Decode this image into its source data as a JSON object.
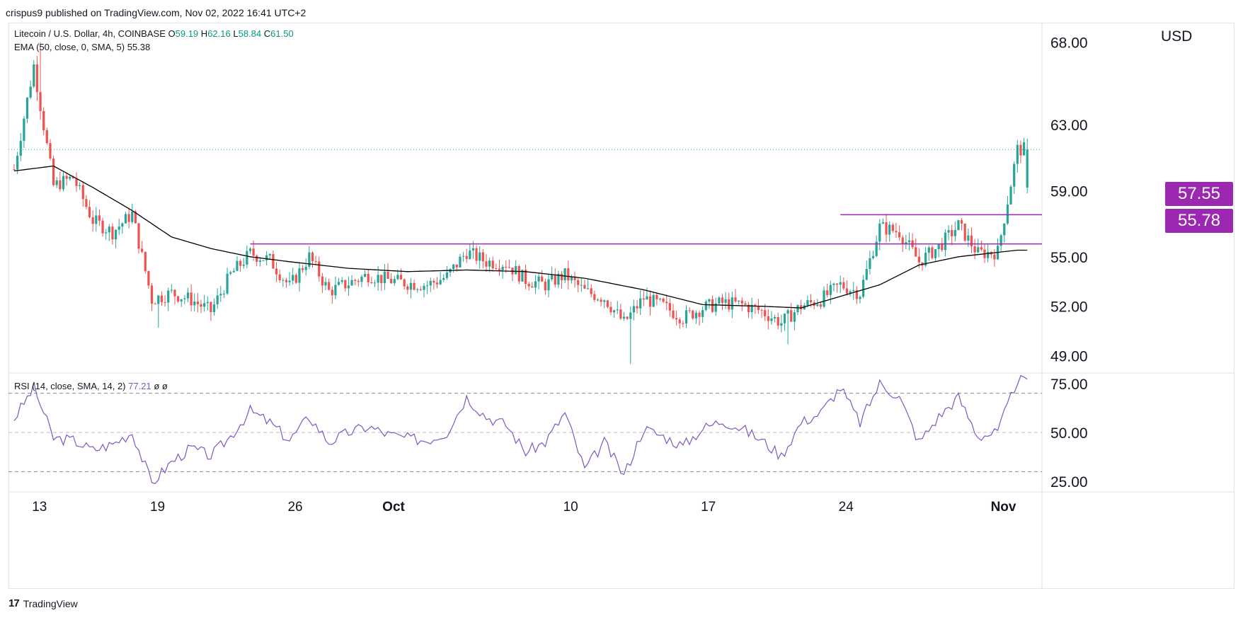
{
  "header": {
    "publish_line": "crispus9 published on TradingView.com, Nov 02, 2022 16:41 UTC+2"
  },
  "legend": {
    "symbol": "Litecoin / U.S. Dollar, 4h, COINBASE",
    "o_label": "O",
    "o_value": "59.19",
    "h_label": "H",
    "h_value": "62.16",
    "l_label": "L",
    "l_value": "58.84",
    "c_label": "C",
    "c_value": "61.50",
    "ema_label": "EMA (50, close, 0, SMA, 5)",
    "ema_value": "55.38"
  },
  "rsi_legend": {
    "label": "RSI (14, close, SMA, 14, 2)",
    "value": "77.21",
    "extra": "ø ø"
  },
  "currency": "USD",
  "footer": {
    "brand": "TradingView",
    "logo_glyph": "17"
  },
  "colors": {
    "up": "#26a69a",
    "down": "#ef5350",
    "ema": "#000000",
    "level": "#9c27b0",
    "rsi": "#7e57c2",
    "last_price": "#26a69a"
  },
  "chart_data": [
    {
      "type": "candlestick",
      "title": "Litecoin / U.S. Dollar, 4h, COINBASE",
      "ylabel": "USD",
      "ylim": [
        48.0,
        68.5
      ],
      "y_ticks": [
        "49.00",
        "52.00",
        "55.00",
        "59.00",
        "63.00",
        "68.00"
      ],
      "x_tick_labels": [
        "13",
        "19",
        "26",
        "Oct",
        "10",
        "17",
        "24",
        "Nov"
      ],
      "x_range_dates": [
        "2022-09-12",
        "2022-11-02"
      ],
      "last_price": 61.5,
      "price_labels": [
        "57.55",
        "55.78"
      ],
      "horizontal_levels": [
        {
          "price": 57.55,
          "from_date": "2022-10-24",
          "to_date": "2022-11-02"
        },
        {
          "price": 55.78,
          "from_date": "2022-09-24",
          "to_date": "2022-11-02"
        }
      ],
      "close_anchors": [
        [
          "2022-09-12",
          60.3
        ],
        [
          "2022-09-13",
          66.6
        ],
        [
          "2022-09-14",
          59.3
        ],
        [
          "2022-09-15",
          59.8
        ],
        [
          "2022-09-16",
          57.2
        ],
        [
          "2022-09-17",
          56.5
        ],
        [
          "2022-09-18",
          57.6
        ],
        [
          "2022-09-19",
          52.4
        ],
        [
          "2022-09-20",
          52.8
        ],
        [
          "2022-09-21",
          52.4
        ],
        [
          "2022-09-22",
          51.7
        ],
        [
          "2022-09-23",
          53.9
        ],
        [
          "2022-09-24",
          55.2
        ],
        [
          "2022-09-25",
          54.8
        ],
        [
          "2022-09-26",
          53.2
        ],
        [
          "2022-09-27",
          55.0
        ],
        [
          "2022-09-28",
          52.9
        ],
        [
          "2022-09-29",
          53.4
        ],
        [
          "2022-09-30",
          53.9
        ],
        [
          "2022-10-01",
          53.6
        ],
        [
          "2022-10-02",
          53.4
        ],
        [
          "2022-10-03",
          53.3
        ],
        [
          "2022-10-04",
          53.8
        ],
        [
          "2022-10-05",
          55.3
        ],
        [
          "2022-10-06",
          54.7
        ],
        [
          "2022-10-07",
          54.6
        ],
        [
          "2022-10-08",
          53.6
        ],
        [
          "2022-10-09",
          53.3
        ],
        [
          "2022-10-10",
          53.9
        ],
        [
          "2022-10-11",
          52.9
        ],
        [
          "2022-10-12",
          52.5
        ],
        [
          "2022-10-13",
          51.0
        ],
        [
          "2022-10-14",
          52.5
        ],
        [
          "2022-10-15",
          52.0
        ],
        [
          "2022-10-16",
          51.3
        ],
        [
          "2022-10-17",
          51.9
        ],
        [
          "2022-10-18",
          52.2
        ],
        [
          "2022-10-19",
          52.1
        ],
        [
          "2022-10-20",
          51.7
        ],
        [
          "2022-10-21",
          51.0
        ],
        [
          "2022-10-22",
          52.0
        ],
        [
          "2022-10-23",
          52.4
        ],
        [
          "2022-10-24",
          53.3
        ],
        [
          "2022-10-25",
          52.8
        ],
        [
          "2022-10-26",
          56.8
        ],
        [
          "2022-10-27",
          56.5
        ],
        [
          "2022-10-28",
          54.7
        ],
        [
          "2022-10-29",
          55.6
        ],
        [
          "2022-10-30",
          56.9
        ],
        [
          "2022-10-31",
          55.2
        ],
        [
          "2022-11-01",
          55.3
        ],
        [
          "2022-11-02",
          61.5
        ]
      ],
      "ema_anchors": [
        [
          "2022-09-12",
          60.2
        ],
        [
          "2022-09-14",
          60.5
        ],
        [
          "2022-09-16",
          59.2
        ],
        [
          "2022-09-18",
          57.8
        ],
        [
          "2022-09-20",
          56.2
        ],
        [
          "2022-09-22",
          55.5
        ],
        [
          "2022-09-24",
          55.0
        ],
        [
          "2022-09-26",
          54.7
        ],
        [
          "2022-09-29",
          54.3
        ],
        [
          "2022-10-02",
          54.1
        ],
        [
          "2022-10-05",
          54.2
        ],
        [
          "2022-10-08",
          54.1
        ],
        [
          "2022-10-11",
          53.7
        ],
        [
          "2022-10-14",
          53.0
        ],
        [
          "2022-10-17",
          52.1
        ],
        [
          "2022-10-20",
          52.0
        ],
        [
          "2022-10-22",
          51.9
        ],
        [
          "2022-10-24",
          52.6
        ],
        [
          "2022-10-26",
          53.3
        ],
        [
          "2022-10-28",
          54.5
        ],
        [
          "2022-10-30",
          55.0
        ],
        [
          "2022-11-02",
          55.4
        ]
      ],
      "swing_extremes": [
        [
          "2022-09-13",
          68.0
        ],
        [
          "2022-09-19",
          50.7
        ],
        [
          "2022-10-13",
          48.5
        ],
        [
          "2022-10-21",
          49.7
        ],
        [
          "2022-11-02",
          62.2
        ]
      ]
    },
    {
      "type": "line",
      "title": "RSI (14, close, SMA, 14, 2)",
      "ylim": [
        20,
        80
      ],
      "y_ticks": [
        "25.00",
        "50.00",
        "75.00"
      ],
      "reference_levels": [
        70,
        50,
        30
      ],
      "series": [
        {
          "name": "RSI",
          "points": [
            [
              "2022-09-12",
              57
            ],
            [
              "2022-09-13",
              73
            ],
            [
              "2022-09-14",
              47
            ],
            [
              "2022-09-15",
              46
            ],
            [
              "2022-09-16",
              41
            ],
            [
              "2022-09-17",
              44
            ],
            [
              "2022-09-18",
              50
            ],
            [
              "2022-09-19",
              24
            ],
            [
              "2022-09-20",
              35
            ],
            [
              "2022-09-21",
              42
            ],
            [
              "2022-09-22",
              38
            ],
            [
              "2022-09-23",
              48
            ],
            [
              "2022-09-24",
              61
            ],
            [
              "2022-09-25",
              55
            ],
            [
              "2022-09-26",
              46
            ],
            [
              "2022-09-27",
              58
            ],
            [
              "2022-09-28",
              45
            ],
            [
              "2022-09-29",
              50
            ],
            [
              "2022-09-30",
              53
            ],
            [
              "2022-10-01",
              49
            ],
            [
              "2022-10-02",
              47
            ],
            [
              "2022-10-03",
              46
            ],
            [
              "2022-10-04",
              50
            ],
            [
              "2022-10-05",
              68
            ],
            [
              "2022-10-06",
              58
            ],
            [
              "2022-10-07",
              54
            ],
            [
              "2022-10-08",
              40
            ],
            [
              "2022-10-09",
              45
            ],
            [
              "2022-10-10",
              60
            ],
            [
              "2022-10-11",
              31
            ],
            [
              "2022-10-12",
              45
            ],
            [
              "2022-10-13",
              28
            ],
            [
              "2022-10-14",
              52
            ],
            [
              "2022-10-15",
              48
            ],
            [
              "2022-10-16",
              43
            ],
            [
              "2022-10-17",
              52
            ],
            [
              "2022-10-18",
              56
            ],
            [
              "2022-10-19",
              52
            ],
            [
              "2022-10-20",
              46
            ],
            [
              "2022-10-21",
              38
            ],
            [
              "2022-10-22",
              55
            ],
            [
              "2022-10-23",
              60
            ],
            [
              "2022-10-24",
              73
            ],
            [
              "2022-10-25",
              55
            ],
            [
              "2022-10-26",
              75
            ],
            [
              "2022-10-27",
              68
            ],
            [
              "2022-10-28",
              45
            ],
            [
              "2022-10-29",
              58
            ],
            [
              "2022-10-30",
              68
            ],
            [
              "2022-10-31",
              48
            ],
            [
              "2022-11-01",
              50
            ],
            [
              "2022-11-02",
              77
            ]
          ]
        }
      ]
    }
  ]
}
